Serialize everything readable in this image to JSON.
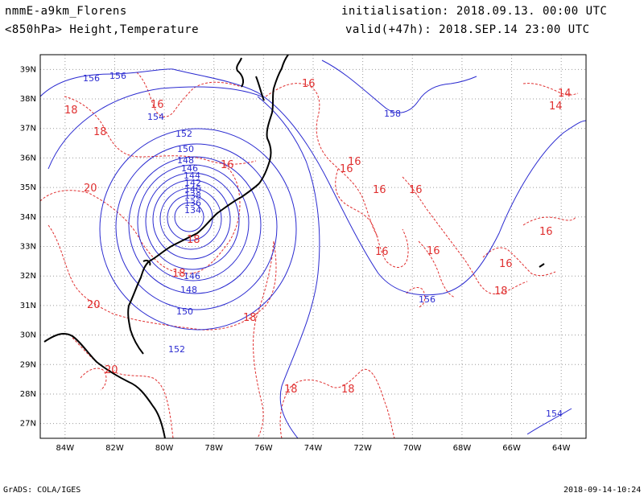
{
  "header": {
    "model": "nmmE-a9km_Florens",
    "level": "<850hPa> Height,Temperature",
    "init": "initialisation: 2018.09.13.  00:00 UTC",
    "valid": "valid(+47h): 2018.SEP.14 23:00 UTC"
  },
  "footer": {
    "left": "GrADS: COLA/IGES",
    "right": "2018-09-14-10:24"
  },
  "map": {
    "lon_range": [
      -85,
      -63
    ],
    "lat_range": [
      26.5,
      39.5
    ],
    "lon_ticks": [
      "84W",
      "82W",
      "80W",
      "78W",
      "76W",
      "74W",
      "72W",
      "70W",
      "68W",
      "66W",
      "64W"
    ],
    "lat_ticks": [
      "27N",
      "28N",
      "29N",
      "30N",
      "31N",
      "32N",
      "33N",
      "34N",
      "35N",
      "36N",
      "37N",
      "38N",
      "39N"
    ],
    "colors": {
      "height": "#2a2ad0",
      "temperature": "#e03030",
      "coast": "#000000",
      "grid": "#9a9a9a"
    },
    "height_labels": [
      "156",
      "156",
      "158",
      "154",
      "152",
      "150",
      "148",
      "146",
      "144",
      "142",
      "140",
      "138",
      "136",
      "134",
      "146",
      "148",
      "150",
      "152",
      "156",
      "154"
    ],
    "temp_labels": [
      "16",
      "16",
      "18",
      "18",
      "16",
      "20",
      "18",
      "16",
      "16",
      "16",
      "18",
      "16",
      "16",
      "16",
      "16",
      "16",
      "18",
      "20",
      "18",
      "20",
      "18",
      "18",
      "14",
      "14"
    ]
  }
}
